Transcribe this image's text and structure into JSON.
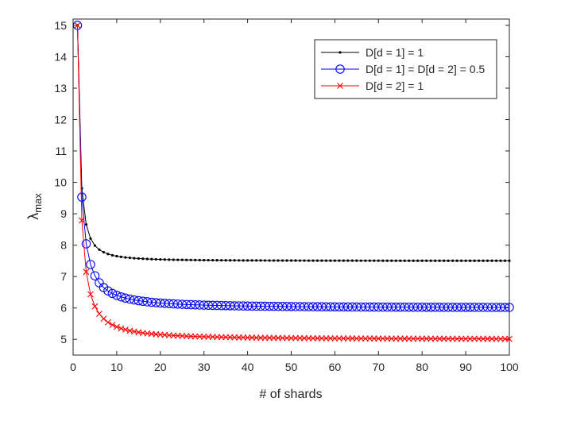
{
  "chart_data": {
    "type": "line",
    "xlabel": "# of shards",
    "ylabel_main": "λ",
    "ylabel_sub": "max",
    "xlim": [
      0,
      100
    ],
    "ylim": [
      4.5,
      15.2
    ],
    "xticks": [
      0,
      10,
      20,
      30,
      40,
      50,
      60,
      70,
      80,
      90,
      100
    ],
    "yticks": [
      5,
      6,
      7,
      8,
      9,
      10,
      11,
      12,
      13,
      14,
      15
    ],
    "grid": false,
    "legend_position": "top-right",
    "series": [
      {
        "name": "D[d = 1] = 1",
        "color": "#000000",
        "marker": "dot",
        "model": {
          "a": 7.5,
          "b": 7.5,
          "n": 1.7
        }
      },
      {
        "name": "D[d = 1] = D[d = 2] = 0.5",
        "color": "#0000ff",
        "marker": "circle",
        "model": {
          "a": 6.0,
          "b": 9.0,
          "n": 1.35
        }
      },
      {
        "name": "D[d = 2] = 1",
        "color": "#ff0000",
        "marker": "cross",
        "model": {
          "a": 5.0,
          "b": 10.0,
          "n": 1.4
        }
      }
    ]
  }
}
